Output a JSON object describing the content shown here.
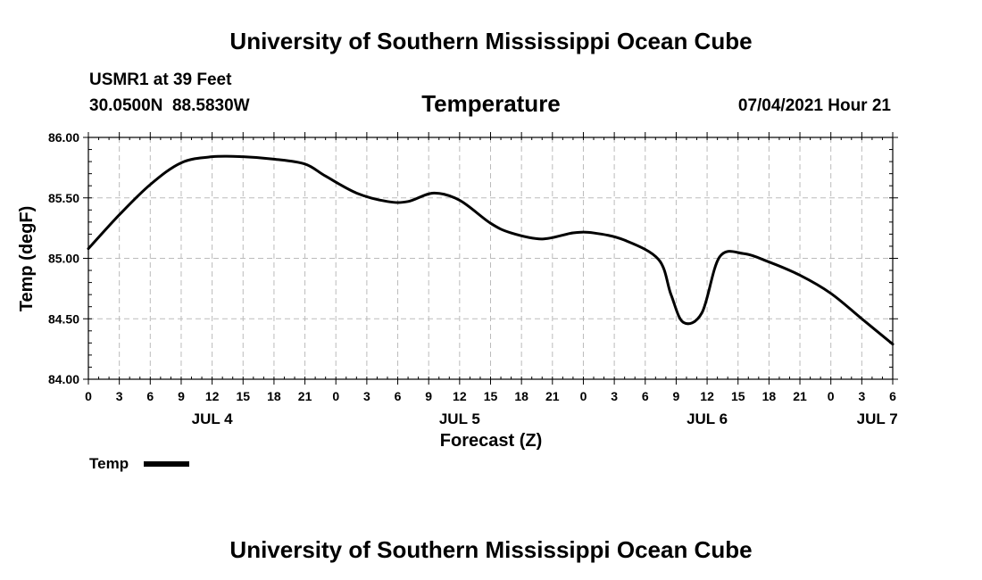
{
  "header": {
    "title_top": "University of Southern Mississippi Ocean Cube",
    "station": "USMR1 at 39 Feet",
    "coords": "30.0500N  88.5830W",
    "variable": "Temperature",
    "datetime": "07/04/2021 Hour 21"
  },
  "footer": {
    "title_bottom": "University of Southern Mississippi Ocean Cube"
  },
  "colors": {
    "line": "#000000",
    "grid": "#bbbbbb",
    "axis": "#000000"
  },
  "chart_data": {
    "type": "line",
    "title": "Temperature",
    "xlabel": "Forecast (Z)",
    "ylabel": "Temp (degF)",
    "xlim": [
      0,
      78
    ],
    "ylim": [
      84.0,
      86.0
    ],
    "yticks": [
      "84.00",
      "84.50",
      "85.00",
      "85.50",
      "86.00"
    ],
    "ytick_values": [
      84.0,
      84.5,
      85.0,
      85.5,
      86.0
    ],
    "xtick_labels": [
      "0",
      "3",
      "6",
      "9",
      "12",
      "15",
      "18",
      "21",
      "0",
      "3",
      "6",
      "9",
      "12",
      "15",
      "18",
      "21",
      "0",
      "3",
      "6",
      "9",
      "12",
      "15",
      "18",
      "21",
      "0",
      "3",
      "6"
    ],
    "date_labels": [
      {
        "label": "JUL 4",
        "x": 12
      },
      {
        "label": "JUL 5",
        "x": 36
      },
      {
        "label": "JUL 6",
        "x": 60
      },
      {
        "label": "JUL 7",
        "x": 76.5
      }
    ],
    "legend": {
      "label": "Temp",
      "position": "bottom-left"
    },
    "grid": true,
    "series": [
      {
        "name": "Temp",
        "x": [
          0,
          3,
          6,
          9,
          12,
          15,
          18,
          21,
          23,
          26,
          29,
          31,
          33.5,
          36,
          39,
          41,
          44,
          47,
          49,
          52,
          55.3,
          56.5,
          57.7,
          59.5,
          61.2,
          63.5,
          66,
          69,
          72,
          75,
          78
        ],
        "y": [
          85.08,
          85.36,
          85.61,
          85.79,
          85.84,
          85.84,
          85.82,
          85.78,
          85.68,
          85.54,
          85.47,
          85.47,
          85.54,
          85.48,
          85.29,
          85.21,
          85.16,
          85.21,
          85.21,
          85.15,
          84.99,
          84.7,
          84.47,
          84.55,
          85.01,
          85.04,
          84.97,
          84.86,
          84.71,
          84.5,
          84.29
        ]
      }
    ]
  }
}
